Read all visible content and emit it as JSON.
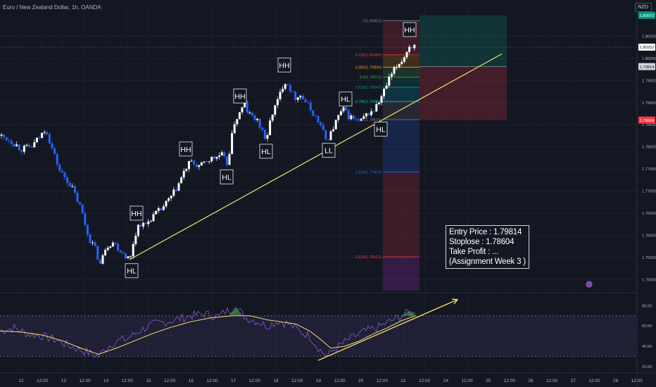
{
  "header": {
    "symbol_title": "Euro / New Zealand Dollar, 1h, OANDA",
    "currency_badge": "NZD"
  },
  "info_box": {
    "entry": "Entry Price : 1.79814",
    "stop": "Stoplose : 1.78604",
    "tp": "Take Profit : ...",
    "note": "(Assignment Week 3 )"
  },
  "chart_data": {
    "type": "candlestick",
    "price_axis": {
      "ylim": [
        1.7475,
        1.81
      ],
      "ticks": [
        "1.75000",
        "1.75500",
        "1.76000",
        "1.76500",
        "1.77000",
        "1.77500",
        "1.78000",
        "1.78500",
        "1.79000",
        "1.79500",
        "1.80000",
        "1.80500"
      ],
      "price_labels": [
        {
          "text": "1.80972",
          "value": 1.80972,
          "color": "#089981"
        },
        {
          "text": "1.80252",
          "value": 1.80252,
          "color": "#ffffff"
        },
        {
          "text": "1.79814",
          "value": 1.79814,
          "color": "#d1d4dc"
        },
        {
          "text": "1.78604",
          "value": 1.78604,
          "color": "#f23645"
        }
      ]
    },
    "time_axis": {
      "labels": [
        "12",
        "12:00",
        "13",
        "12:00",
        "14",
        "12:00",
        "15",
        "12:00",
        "16",
        "12:00",
        "17",
        "12:00",
        "18",
        "12:00",
        "19",
        "12:00",
        "20",
        "12:00",
        "21",
        "12:00",
        "24",
        "12:00",
        "25",
        "12:00",
        "26",
        "12:00",
        "27",
        "12:00",
        "28",
        "12:00"
      ]
    },
    "price_path": [
      [
        0,
        1.7825
      ],
      [
        15,
        1.7815
      ],
      [
        30,
        1.7795
      ],
      [
        45,
        1.78
      ],
      [
        60,
        1.783
      ],
      [
        65,
        1.7845
      ],
      [
        72,
        1.7805
      ],
      [
        85,
        1.7745
      ],
      [
        100,
        1.7715
      ],
      [
        115,
        1.766
      ],
      [
        125,
        1.76
      ],
      [
        135,
        1.757
      ],
      [
        143,
        1.7532
      ],
      [
        150,
        1.7575
      ],
      [
        160,
        1.7585
      ],
      [
        170,
        1.7568
      ],
      [
        178,
        1.7555
      ],
      [
        185,
        1.7545
      ],
      [
        190,
        1.759
      ],
      [
        198,
        1.763
      ],
      [
        205,
        1.762
      ],
      [
        215,
        1.764
      ],
      [
        230,
        1.766
      ],
      [
        245,
        1.769
      ],
      [
        255,
        1.772
      ],
      [
        262,
        1.7745
      ],
      [
        270,
        1.7765
      ],
      [
        285,
        1.7755
      ],
      [
        295,
        1.777
      ],
      [
        305,
        1.7775
      ],
      [
        315,
        1.7782
      ],
      [
        322,
        1.776
      ],
      [
        326,
        1.779
      ],
      [
        333,
        1.7855
      ],
      [
        342,
        1.788
      ],
      [
        348,
        1.79
      ],
      [
        352,
        1.7875
      ],
      [
        362,
        1.7865
      ],
      [
        372,
        1.784
      ],
      [
        379,
        1.781
      ],
      [
        385,
        1.787
      ],
      [
        395,
        1.7905
      ],
      [
        404,
        1.795
      ],
      [
        410,
        1.794
      ],
      [
        418,
        1.791
      ],
      [
        425,
        1.792
      ],
      [
        435,
        1.79
      ],
      [
        445,
        1.7875
      ],
      [
        455,
        1.785
      ],
      [
        463,
        1.7815
      ],
      [
        470,
        1.783
      ],
      [
        478,
        1.786
      ],
      [
        487,
        1.7885
      ],
      [
        495,
        1.787
      ],
      [
        505,
        1.786
      ],
      [
        512,
        1.7855
      ],
      [
        522,
        1.7875
      ],
      [
        530,
        1.788
      ],
      [
        540,
        1.7905
      ],
      [
        548,
        1.7935
      ],
      [
        555,
        1.796
      ],
      [
        565,
        1.7985
      ],
      [
        575,
        1.8005
      ],
      [
        580,
        1.8025
      ],
      [
        584,
        1.803
      ],
      [
        590,
        1.8025
      ]
    ],
    "trendline": {
      "from": [
        184,
        1.7545
      ],
      "to": [
        713,
        1.801
      ],
      "color": "#f7e16b"
    },
    "fibonacci": {
      "levels": [
        {
          "label": "0(1.80852)",
          "value": 1.80852,
          "color": "#7d8087"
        },
        {
          "label": "0.236(1.80080)",
          "value": 1.8008,
          "color": "#f23645"
        },
        {
          "label": "0.382(1.79800)",
          "value": 1.798,
          "color": "#ff9800"
        },
        {
          "label": "0.5(1.79573)",
          "value": 1.79573,
          "color": "#4caf50"
        },
        {
          "label": "0.618(1.79347)",
          "value": 1.79347,
          "color": "#089981"
        },
        {
          "label": "0.786(1.79025)",
          "value": 1.79025,
          "color": "#00bcd4"
        },
        {
          "label": "1(1.78615)",
          "value": 1.78615,
          "color": "#7d8087"
        },
        {
          "label": "1.618(1.77429)",
          "value": 1.77429,
          "color": "#2962ff"
        },
        {
          "label": "2.618(1.75512)",
          "value": 1.75512,
          "color": "#f23645"
        }
      ],
      "x_start": 544,
      "x_end": 596
    },
    "position_tool": {
      "entry": 1.79814,
      "stop": 1.78604,
      "target": 1.80972,
      "x_start": 596,
      "x_end": 720
    },
    "swing_labels": [
      {
        "text": "HH",
        "x": 194,
        "price": 1.765,
        "below": false
      },
      {
        "text": "HL",
        "x": 187,
        "price": 1.752,
        "below": true
      },
      {
        "text": "HH",
        "x": 264,
        "price": 1.7795,
        "below": false
      },
      {
        "text": "HL",
        "x": 322,
        "price": 1.7732,
        "below": true
      },
      {
        "text": "HH",
        "x": 341,
        "price": 1.7915,
        "below": false
      },
      {
        "text": "HL",
        "x": 378,
        "price": 1.779,
        "below": true
      },
      {
        "text": "HH",
        "x": 404,
        "price": 1.7985,
        "below": false
      },
      {
        "text": "LL",
        "x": 467,
        "price": 1.7792,
        "below": true
      },
      {
        "text": "HL",
        "x": 491,
        "price": 1.7908,
        "below": false
      },
      {
        "text": "HL",
        "x": 541,
        "price": 1.784,
        "below": true
      },
      {
        "text": "HH",
        "x": 582,
        "price": 1.8065,
        "below": false
      }
    ],
    "rsi": {
      "ticks": [
        "80.00",
        "60.00",
        "40.00",
        "20.00"
      ],
      "ylim": [
        15,
        90
      ],
      "bands": [
        30,
        70
      ],
      "rsi_path": [
        [
          0,
          55
        ],
        [
          20,
          58
        ],
        [
          40,
          52
        ],
        [
          60,
          50
        ],
        [
          80,
          46
        ],
        [
          100,
          40
        ],
        [
          120,
          35
        ],
        [
          140,
          30
        ],
        [
          150,
          38
        ],
        [
          165,
          45
        ],
        [
          180,
          47
        ],
        [
          200,
          56
        ],
        [
          220,
          62
        ],
        [
          250,
          66
        ],
        [
          270,
          70
        ],
        [
          290,
          72
        ],
        [
          310,
          69
        ],
        [
          320,
          74
        ],
        [
          335,
          78
        ],
        [
          350,
          68
        ],
        [
          360,
          66
        ],
        [
          380,
          60
        ],
        [
          395,
          65
        ],
        [
          410,
          62
        ],
        [
          425,
          55
        ],
        [
          440,
          50
        ],
        [
          455,
          36
        ],
        [
          465,
          30
        ],
        [
          475,
          37
        ],
        [
          490,
          44
        ],
        [
          505,
          50
        ],
        [
          520,
          55
        ],
        [
          535,
          58
        ],
        [
          550,
          63
        ],
        [
          565,
          68
        ],
        [
          580,
          73
        ],
        [
          590,
          72
        ]
      ],
      "signal_path": [
        [
          0,
          55
        ],
        [
          30,
          54
        ],
        [
          60,
          51
        ],
        [
          90,
          45
        ],
        [
          115,
          38
        ],
        [
          140,
          32
        ],
        [
          165,
          38
        ],
        [
          190,
          45
        ],
        [
          215,
          52
        ],
        [
          240,
          58
        ],
        [
          270,
          64
        ],
        [
          300,
          68
        ],
        [
          330,
          70
        ],
        [
          355,
          70
        ],
        [
          380,
          66
        ],
        [
          400,
          64
        ],
        [
          420,
          62
        ],
        [
          440,
          55
        ],
        [
          455,
          47
        ],
        [
          470,
          38
        ],
        [
          490,
          40
        ],
        [
          510,
          45
        ],
        [
          530,
          52
        ],
        [
          550,
          58
        ],
        [
          570,
          65
        ],
        [
          590,
          70
        ]
      ],
      "trend_from": [
        452,
        26
      ],
      "trend_to": [
        650,
        86
      ]
    }
  }
}
